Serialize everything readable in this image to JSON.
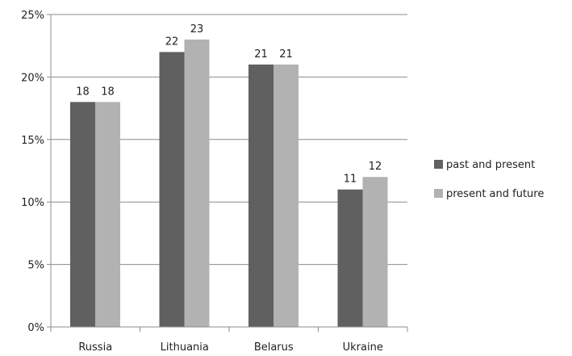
{
  "chart_data": {
    "type": "bar",
    "title": "",
    "xlabel": "",
    "ylabel": "",
    "categories": [
      "Russia",
      "Lithuania",
      "Belarus",
      "Ukraine"
    ],
    "series": [
      {
        "name": "past and present",
        "values": [
          18,
          22,
          21,
          11
        ],
        "color": "#606060"
      },
      {
        "name": "present and future",
        "values": [
          18,
          23,
          21,
          12
        ],
        "color": "#b2b2b2"
      }
    ],
    "ylim": [
      0,
      25
    ],
    "yticks": [
      0,
      5,
      10,
      15,
      20,
      25
    ],
    "ytick_labels": [
      "0%",
      "5%",
      "10%",
      "15%",
      "20%",
      "25%"
    ],
    "data_labels": true,
    "grid": true,
    "legend_position": "right"
  }
}
